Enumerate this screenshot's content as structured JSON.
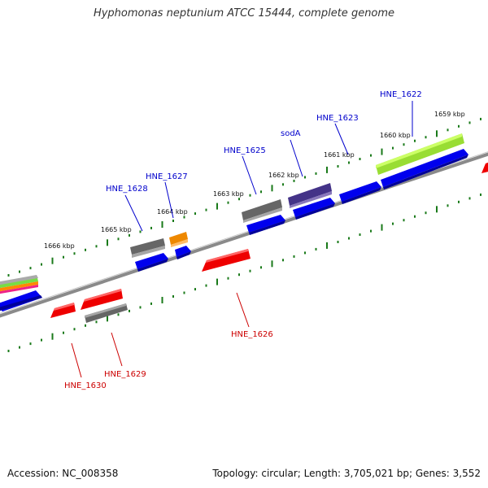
{
  "title": "Hyphomonas neptunium ATCC 15444, complete genome",
  "footer": {
    "accession": "Accession: NC_008358",
    "topology": "Topology: circular; Length: 3,705,021 bp; Genes: 3,552"
  },
  "colors": {
    "tick": "#1a7a1a",
    "leading_label": "#0000cc",
    "lagging_label": "#cc0000",
    "backbone": "#888888"
  },
  "kbp_labels": [
    "1666 kbp",
    "1665 kbp",
    "1664 kbp",
    "1663 kbp",
    "1662 kbp",
    "1661 kbp",
    "1660 kbp",
    "1659 kbp"
  ],
  "gene_labels": {
    "hne_1622": "HNE_1622",
    "hne_1623": "HNE_1623",
    "soda": "sodA",
    "hne_1625": "HNE_1625",
    "hne_1627": "HNE_1627",
    "hne_1628": "HNE_1628",
    "hne_1626": "HNE_1626",
    "hne_1629": "HNE_1629",
    "hne_1630": "HNE_1630"
  }
}
